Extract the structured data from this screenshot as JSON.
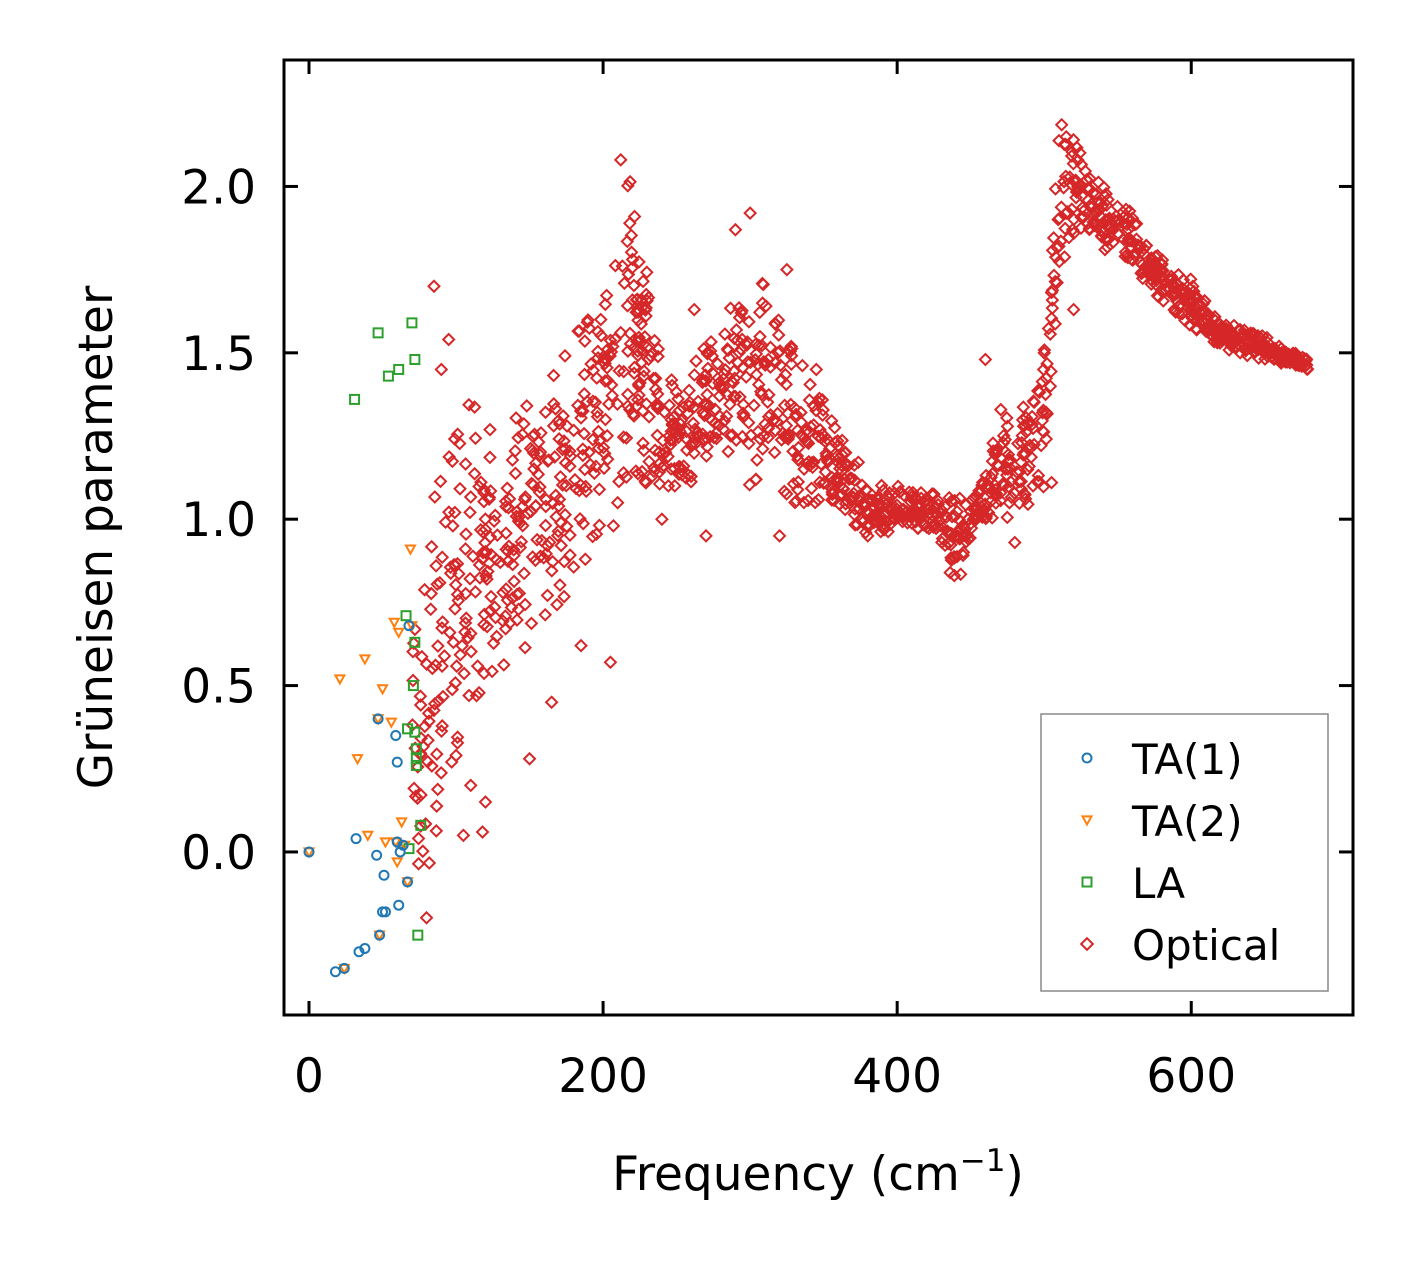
{
  "chart_data": {
    "type": "scatter",
    "xlabel": "Frequency (cm",
    "xlabel_sup": "−1",
    "xlabel_end": ")",
    "ylabel": "Grüneisen parameter",
    "xlim": [
      -17,
      710
    ],
    "ylim": [
      -0.49,
      2.38
    ],
    "xticks": [
      0,
      200,
      400,
      600
    ],
    "xtick_labels": [
      "0",
      "200",
      "400",
      "600"
    ],
    "yticks": [
      0.0,
      0.5,
      1.0,
      1.5,
      2.0
    ],
    "ytick_labels": [
      "0.0",
      "0.5",
      "1.0",
      "1.5",
      "2.0"
    ],
    "legend_position": "lower-right",
    "series": [
      {
        "name": "TA(1)",
        "marker": "circle",
        "color": "#1f77b4",
        "points": [
          [
            0,
            0
          ],
          [
            18,
            -0.36
          ],
          [
            24,
            -0.35
          ],
          [
            32,
            0.04
          ],
          [
            34,
            -0.3
          ],
          [
            38,
            -0.29
          ],
          [
            46,
            -0.01
          ],
          [
            47,
            0.4
          ],
          [
            48,
            -0.25
          ],
          [
            50,
            -0.18
          ],
          [
            51,
            -0.07
          ],
          [
            52,
            -0.18
          ],
          [
            59,
            0.35
          ],
          [
            60,
            0.27
          ],
          [
            60,
            0.03
          ],
          [
            61,
            -0.16
          ],
          [
            62,
            0
          ],
          [
            64,
            0.02
          ],
          [
            67,
            -0.09
          ],
          [
            68,
            0.68
          ]
        ]
      },
      {
        "name": "TA(2)",
        "marker": "triangle-down",
        "color": "#ff7f0e",
        "points": [
          [
            0,
            0
          ],
          [
            21,
            0.52
          ],
          [
            24,
            -0.35
          ],
          [
            33,
            0.28
          ],
          [
            38,
            0.58
          ],
          [
            40,
            0.05
          ],
          [
            47,
            0.4
          ],
          [
            48,
            -0.25
          ],
          [
            50,
            0.49
          ],
          [
            52,
            0.03
          ],
          [
            56,
            0.39
          ],
          [
            58,
            0.69
          ],
          [
            59,
            0.03
          ],
          [
            60,
            -0.03
          ],
          [
            61,
            0.66
          ],
          [
            63,
            0.09
          ],
          [
            65,
            0.02
          ],
          [
            67,
            -0.09
          ],
          [
            69,
            0.91
          ],
          [
            70,
            0.68
          ]
        ]
      },
      {
        "name": "LA",
        "marker": "square",
        "color": "#2ca02c",
        "points": [
          [
            31,
            1.36
          ],
          [
            47,
            1.56
          ],
          [
            54,
            1.43
          ],
          [
            61,
            1.45
          ],
          [
            66,
            0.71
          ],
          [
            67,
            0.37
          ],
          [
            68,
            0.01
          ],
          [
            70,
            1.59
          ],
          [
            71,
            0.5
          ],
          [
            72,
            1.48
          ],
          [
            72,
            0.63
          ],
          [
            72,
            0.36
          ],
          [
            73,
            0.31
          ],
          [
            73,
            0.28
          ],
          [
            73,
            0.26
          ],
          [
            74,
            -0.25
          ],
          [
            76,
            0.08
          ]
        ]
      },
      {
        "name": "Optical",
        "marker": "diamond",
        "color": "#d62728",
        "envelope": [
          [
            70,
            0.1,
            0.7
          ],
          [
            80,
            -0.2,
            0.9
          ],
          [
            90,
            0.2,
            1.2
          ],
          [
            100,
            0.3,
            1.3
          ],
          [
            110,
            0.45,
            1.35
          ],
          [
            120,
            0.5,
            1.3
          ],
          [
            130,
            0.55,
            1.2
          ],
          [
            140,
            0.6,
            1.3
          ],
          [
            150,
            0.62,
            1.35
          ],
          [
            160,
            0.7,
            1.4
          ],
          [
            170,
            0.75,
            1.45
          ],
          [
            180,
            0.8,
            1.55
          ],
          [
            190,
            0.9,
            1.6
          ],
          [
            200,
            1.0,
            1.6
          ],
          [
            210,
            1.05,
            1.9
          ],
          [
            220,
            1.1,
            2.05
          ],
          [
            225,
            1.15,
            1.95
          ],
          [
            230,
            1.1,
            1.85
          ],
          [
            240,
            1.1,
            1.4
          ],
          [
            250,
            1.1,
            1.45
          ],
          [
            260,
            1.05,
            1.5
          ],
          [
            270,
            1.15,
            1.55
          ],
          [
            280,
            1.2,
            1.5
          ],
          [
            290,
            1.2,
            1.7
          ],
          [
            300,
            1.1,
            1.75
          ],
          [
            310,
            1.15,
            1.7
          ],
          [
            320,
            1.1,
            1.6
          ],
          [
            330,
            1.05,
            1.55
          ],
          [
            340,
            1.05,
            1.45
          ],
          [
            350,
            1.05,
            1.35
          ],
          [
            360,
            1.05,
            1.25
          ],
          [
            370,
            0.98,
            1.2
          ],
          [
            380,
            0.95,
            1.12
          ],
          [
            390,
            0.95,
            1.1
          ],
          [
            400,
            0.97,
            1.1
          ],
          [
            410,
            0.98,
            1.08
          ],
          [
            420,
            0.96,
            1.08
          ],
          [
            430,
            0.93,
            1.07
          ],
          [
            440,
            0.78,
            1.06
          ],
          [
            450,
            0.95,
            1.07
          ],
          [
            460,
            1.0,
            1.12
          ],
          [
            470,
            1.0,
            1.35
          ],
          [
            480,
            1.0,
            1.25
          ],
          [
            490,
            1.05,
            1.4
          ],
          [
            500,
            1.1,
            1.5
          ],
          [
            510,
            1.75,
            2.23
          ],
          [
            520,
            1.85,
            2.15
          ],
          [
            530,
            1.85,
            2.05
          ],
          [
            540,
            1.8,
            2.0
          ],
          [
            550,
            1.8,
            1.95
          ],
          [
            560,
            1.78,
            1.92
          ],
          [
            570,
            1.7,
            1.82
          ],
          [
            580,
            1.66,
            1.78
          ],
          [
            590,
            1.62,
            1.75
          ],
          [
            600,
            1.58,
            1.72
          ],
          [
            610,
            1.55,
            1.65
          ],
          [
            620,
            1.52,
            1.6
          ],
          [
            630,
            1.5,
            1.58
          ],
          [
            640,
            1.49,
            1.56
          ],
          [
            650,
            1.48,
            1.55
          ],
          [
            660,
            1.47,
            1.52
          ],
          [
            670,
            1.46,
            1.5
          ],
          [
            680,
            1.45,
            1.48
          ]
        ],
        "outliers": [
          [
            85,
            1.7
          ],
          [
            90,
            1.45
          ],
          [
            95,
            1.54
          ],
          [
            100,
            0.29
          ],
          [
            105,
            0.05
          ],
          [
            110,
            0.2
          ],
          [
            118,
            0.06
          ],
          [
            120,
            0.15
          ],
          [
            150,
            0.28
          ],
          [
            165,
            0.45
          ],
          [
            185,
            0.62
          ],
          [
            205,
            0.57
          ],
          [
            207,
            0.98
          ],
          [
            212,
            2.08
          ],
          [
            240,
            1.0
          ],
          [
            262,
            1.63
          ],
          [
            270,
            0.95
          ],
          [
            290,
            1.87
          ],
          [
            300,
            1.92
          ],
          [
            320,
            0.95
          ],
          [
            325,
            1.75
          ],
          [
            345,
            1.45
          ],
          [
            365,
            1.2
          ],
          [
            380,
            0.95
          ],
          [
            460,
            1.48
          ],
          [
            480,
            0.93
          ],
          [
            500,
            1.5
          ],
          [
            505,
            1.11
          ],
          [
            510,
            1.82
          ],
          [
            520,
            1.63
          ]
        ]
      }
    ]
  }
}
